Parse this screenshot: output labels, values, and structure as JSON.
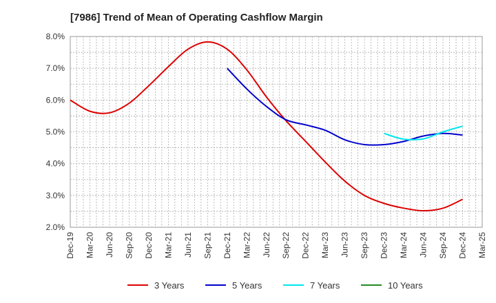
{
  "chart_data": {
    "type": "line",
    "title": "[7986]  Trend of Mean of Operating Cashflow Margin",
    "xlabel": "",
    "ylabel": "",
    "ylim": [
      2.0,
      8.0
    ],
    "yticks": [
      2.0,
      3.0,
      4.0,
      5.0,
      6.0,
      7.0,
      8.0
    ],
    "ytick_labels": [
      "2.0%",
      "3.0%",
      "4.0%",
      "5.0%",
      "6.0%",
      "7.0%",
      "8.0%"
    ],
    "categories": [
      "Dec-19",
      "Mar-20",
      "Jun-20",
      "Sep-20",
      "Dec-20",
      "Mar-21",
      "Jun-21",
      "Sep-21",
      "Dec-21",
      "Mar-22",
      "Jun-22",
      "Sep-22",
      "Dec-22",
      "Mar-23",
      "Jun-23",
      "Sep-23",
      "Dec-23",
      "Mar-24",
      "Jun-24",
      "Sep-24",
      "Dec-24",
      "Mar-25"
    ],
    "grid": true,
    "legend_position": "bottom",
    "series": [
      {
        "name": "3 Years",
        "color": "#dd0000",
        "values": [
          6.0,
          5.65,
          5.6,
          5.9,
          6.45,
          7.05,
          7.6,
          7.83,
          7.6,
          6.95,
          6.1,
          5.35,
          4.7,
          4.05,
          3.45,
          3.0,
          2.75,
          2.6,
          2.52,
          2.6,
          2.88,
          null
        ]
      },
      {
        "name": "5 Years",
        "color": "#0000cc",
        "values": [
          null,
          null,
          null,
          null,
          null,
          null,
          null,
          null,
          7.0,
          6.35,
          5.8,
          5.38,
          5.22,
          5.05,
          4.75,
          4.6,
          4.6,
          4.7,
          4.87,
          4.95,
          4.9,
          null
        ]
      },
      {
        "name": "7 Years",
        "color": "#00e5ee",
        "values": [
          null,
          null,
          null,
          null,
          null,
          null,
          null,
          null,
          null,
          null,
          null,
          null,
          null,
          null,
          null,
          null,
          4.95,
          4.77,
          4.78,
          5.0,
          5.18,
          null
        ]
      },
      {
        "name": "10 Years",
        "color": "#228b22",
        "values": [
          null,
          null,
          null,
          null,
          null,
          null,
          null,
          null,
          null,
          null,
          null,
          null,
          null,
          null,
          null,
          null,
          null,
          null,
          null,
          null,
          null,
          null
        ]
      }
    ]
  }
}
